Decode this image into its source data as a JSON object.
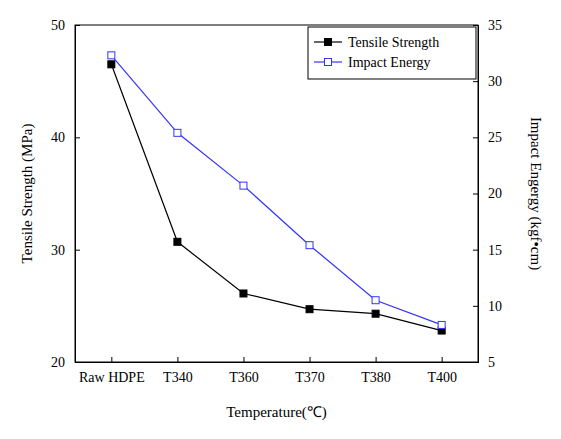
{
  "chart_data": {
    "type": "line",
    "x_label": "Temperature(℃)",
    "y_label": "Tensile Strength (MPa)",
    "y2_label": "Impact Engergy (kgf•cm)",
    "categories": [
      "Raw HDPE",
      "T340",
      "T360",
      "T370",
      "T380",
      "T400"
    ],
    "series": [
      {
        "name": "Tensile Strength",
        "color": "#000000",
        "marker": "square",
        "line_style": "solid",
        "values": [
          46.5,
          30.7,
          26.1,
          24.7,
          24.3,
          22.8
        ]
      },
      {
        "name": "Impact Energy",
        "color": "#3333ff",
        "marker": "square-open",
        "line_style": "solid",
        "axis": "y2",
        "values": [
          32.3,
          25.4,
          20.7,
          15.4,
          10.5,
          8.3
        ]
      }
    ],
    "ylim": [
      20,
      50
    ],
    "yticks": [
      20,
      30,
      40,
      50
    ],
    "y2lim": [
      5,
      35
    ],
    "y2ticks": [
      5,
      10,
      15,
      20,
      25,
      30,
      35
    ],
    "legend": "upper right"
  }
}
